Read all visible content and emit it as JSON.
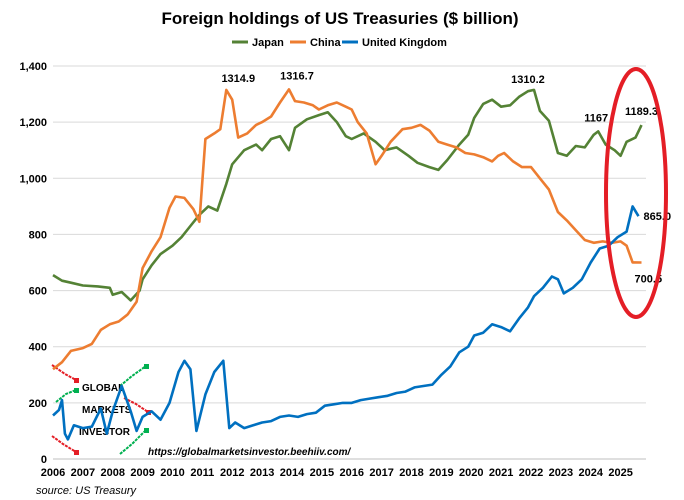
{
  "chart_data": {
    "type": "line",
    "title": "Foreign holdings of US Treasuries ($ billion)",
    "ylim": [
      0,
      1400
    ],
    "yticks": [
      0,
      200,
      400,
      600,
      800,
      1000,
      1200,
      1400
    ],
    "ytick_labels": [
      "0",
      "200",
      "400",
      "600",
      "800",
      "1,000",
      "1,200",
      "1,400"
    ],
    "xlim": [
      2006,
      2025.85
    ],
    "xticks": [
      2006,
      2007,
      2008,
      2009,
      2010,
      2011,
      2012,
      2013,
      2014,
      2015,
      2016,
      2017,
      2018,
      2019,
      2020,
      2021,
      2022,
      2023,
      2024,
      2025
    ],
    "xtick_labels": [
      "2006",
      "2007",
      "2008",
      "2009",
      "2010",
      "2011",
      "2012",
      "2013",
      "2014",
      "2015",
      "2016",
      "2017",
      "2018",
      "2019",
      "2020",
      "2021",
      "2022",
      "2023",
      "2024",
      "2025"
    ],
    "grid": true,
    "legend_position": "top-center",
    "series": [
      {
        "name": "Japan",
        "color": "#548235",
        "points": [
          [
            2006.0,
            655
          ],
          [
            2006.3,
            635
          ],
          [
            2006.6,
            628
          ],
          [
            2007.0,
            618
          ],
          [
            2007.5,
            615
          ],
          [
            2007.9,
            610
          ],
          [
            2008.0,
            585
          ],
          [
            2008.3,
            595
          ],
          [
            2008.6,
            565
          ],
          [
            2008.9,
            600
          ],
          [
            2009.0,
            640
          ],
          [
            2009.3,
            690
          ],
          [
            2009.6,
            730
          ],
          [
            2010.0,
            760
          ],
          [
            2010.3,
            790
          ],
          [
            2010.6,
            830
          ],
          [
            2010.9,
            870
          ],
          [
            2011.2,
            900
          ],
          [
            2011.5,
            885
          ],
          [
            2011.8,
            980
          ],
          [
            2012.0,
            1050
          ],
          [
            2012.4,
            1100
          ],
          [
            2012.8,
            1120
          ],
          [
            2013.0,
            1100
          ],
          [
            2013.3,
            1140
          ],
          [
            2013.6,
            1150
          ],
          [
            2013.9,
            1100
          ],
          [
            2014.1,
            1180
          ],
          [
            2014.5,
            1210
          ],
          [
            2014.9,
            1225
          ],
          [
            2015.2,
            1235
          ],
          [
            2015.5,
            1200
          ],
          [
            2015.8,
            1150
          ],
          [
            2016.0,
            1140
          ],
          [
            2016.4,
            1160
          ],
          [
            2016.8,
            1130
          ],
          [
            2017.1,
            1100
          ],
          [
            2017.5,
            1110
          ],
          [
            2017.9,
            1080
          ],
          [
            2018.2,
            1055
          ],
          [
            2018.6,
            1040
          ],
          [
            2018.9,
            1030
          ],
          [
            2019.2,
            1065
          ],
          [
            2019.6,
            1120
          ],
          [
            2019.9,
            1155
          ],
          [
            2020.1,
            1215
          ],
          [
            2020.4,
            1265
          ],
          [
            2020.7,
            1280
          ],
          [
            2021.0,
            1255
          ],
          [
            2021.3,
            1260
          ],
          [
            2021.6,
            1290
          ],
          [
            2021.9,
            1310.2
          ],
          [
            2022.1,
            1315
          ],
          [
            2022.3,
            1240
          ],
          [
            2022.6,
            1205
          ],
          [
            2022.9,
            1090
          ],
          [
            2023.2,
            1080
          ],
          [
            2023.5,
            1115
          ],
          [
            2023.8,
            1110
          ],
          [
            2024.1,
            1155
          ],
          [
            2024.25,
            1167
          ],
          [
            2024.5,
            1120
          ],
          [
            2024.8,
            1100
          ],
          [
            2025.0,
            1080
          ],
          [
            2025.2,
            1130
          ],
          [
            2025.5,
            1145
          ],
          [
            2025.7,
            1189.3
          ]
        ]
      },
      {
        "name": "China",
        "color": "#ED7D31",
        "points": [
          [
            2006.0,
            320
          ],
          [
            2006.3,
            345
          ],
          [
            2006.6,
            385
          ],
          [
            2007.0,
            395
          ],
          [
            2007.3,
            410
          ],
          [
            2007.6,
            460
          ],
          [
            2007.9,
            480
          ],
          [
            2008.2,
            490
          ],
          [
            2008.5,
            515
          ],
          [
            2008.8,
            560
          ],
          [
            2009.0,
            680
          ],
          [
            2009.3,
            740
          ],
          [
            2009.6,
            790
          ],
          [
            2009.9,
            895
          ],
          [
            2010.1,
            935
          ],
          [
            2010.4,
            930
          ],
          [
            2010.7,
            890
          ],
          [
            2010.9,
            845
          ],
          [
            2011.1,
            1140
          ],
          [
            2011.4,
            1160
          ],
          [
            2011.6,
            1175
          ],
          [
            2011.8,
            1314.9
          ],
          [
            2012.0,
            1280
          ],
          [
            2012.2,
            1145
          ],
          [
            2012.5,
            1160
          ],
          [
            2012.8,
            1190
          ],
          [
            2013.0,
            1200
          ],
          [
            2013.3,
            1220
          ],
          [
            2013.6,
            1270
          ],
          [
            2013.9,
            1316.7
          ],
          [
            2014.1,
            1275
          ],
          [
            2014.4,
            1270
          ],
          [
            2014.7,
            1260
          ],
          [
            2014.9,
            1245
          ],
          [
            2015.2,
            1260
          ],
          [
            2015.5,
            1270
          ],
          [
            2015.8,
            1255
          ],
          [
            2016.0,
            1245
          ],
          [
            2016.2,
            1200
          ],
          [
            2016.5,
            1160
          ],
          [
            2016.8,
            1050
          ],
          [
            2017.0,
            1080
          ],
          [
            2017.3,
            1130
          ],
          [
            2017.7,
            1175
          ],
          [
            2018.0,
            1180
          ],
          [
            2018.3,
            1190
          ],
          [
            2018.6,
            1170
          ],
          [
            2018.9,
            1130
          ],
          [
            2019.2,
            1120
          ],
          [
            2019.5,
            1110
          ],
          [
            2019.8,
            1090
          ],
          [
            2020.1,
            1085
          ],
          [
            2020.4,
            1075
          ],
          [
            2020.7,
            1060
          ],
          [
            2020.9,
            1080
          ],
          [
            2021.1,
            1090
          ],
          [
            2021.4,
            1060
          ],
          [
            2021.7,
            1040
          ],
          [
            2022.0,
            1040
          ],
          [
            2022.3,
            1000
          ],
          [
            2022.6,
            960
          ],
          [
            2022.9,
            880
          ],
          [
            2023.2,
            850
          ],
          [
            2023.5,
            815
          ],
          [
            2023.8,
            780
          ],
          [
            2024.1,
            770
          ],
          [
            2024.4,
            775
          ],
          [
            2024.7,
            770
          ],
          [
            2025.0,
            775
          ],
          [
            2025.2,
            760
          ],
          [
            2025.4,
            700.5
          ],
          [
            2025.7,
            700
          ]
        ]
      },
      {
        "name": "United Kingdom",
        "color": "#0070C0",
        "points": [
          [
            2006.0,
            155
          ],
          [
            2006.2,
            175
          ],
          [
            2006.3,
            210
          ],
          [
            2006.4,
            90
          ],
          [
            2006.5,
            70
          ],
          [
            2006.7,
            120
          ],
          [
            2007.0,
            110
          ],
          [
            2007.3,
            115
          ],
          [
            2007.6,
            180
          ],
          [
            2007.8,
            90
          ],
          [
            2008.0,
            170
          ],
          [
            2008.3,
            260
          ],
          [
            2008.6,
            170
          ],
          [
            2008.8,
            100
          ],
          [
            2009.0,
            150
          ],
          [
            2009.3,
            170
          ],
          [
            2009.6,
            140
          ],
          [
            2009.9,
            200
          ],
          [
            2010.2,
            310
          ],
          [
            2010.4,
            350
          ],
          [
            2010.6,
            320
          ],
          [
            2010.8,
            100
          ],
          [
            2011.1,
            230
          ],
          [
            2011.4,
            310
          ],
          [
            2011.7,
            350
          ],
          [
            2011.9,
            110
          ],
          [
            2012.1,
            130
          ],
          [
            2012.4,
            110
          ],
          [
            2012.7,
            120
          ],
          [
            2013.0,
            130
          ],
          [
            2013.3,
            135
          ],
          [
            2013.6,
            150
          ],
          [
            2013.9,
            155
          ],
          [
            2014.2,
            150
          ],
          [
            2014.5,
            160
          ],
          [
            2014.8,
            165
          ],
          [
            2015.1,
            190
          ],
          [
            2015.4,
            195
          ],
          [
            2015.7,
            200
          ],
          [
            2016.0,
            200
          ],
          [
            2016.3,
            210
          ],
          [
            2016.6,
            215
          ],
          [
            2016.9,
            220
          ],
          [
            2017.2,
            225
          ],
          [
            2017.5,
            235
          ],
          [
            2017.8,
            240
          ],
          [
            2018.1,
            255
          ],
          [
            2018.4,
            260
          ],
          [
            2018.7,
            265
          ],
          [
            2019.0,
            300
          ],
          [
            2019.3,
            330
          ],
          [
            2019.6,
            380
          ],
          [
            2019.9,
            400
          ],
          [
            2020.1,
            440
          ],
          [
            2020.4,
            450
          ],
          [
            2020.7,
            480
          ],
          [
            2021.0,
            470
          ],
          [
            2021.3,
            455
          ],
          [
            2021.6,
            500
          ],
          [
            2021.9,
            540
          ],
          [
            2022.1,
            580
          ],
          [
            2022.4,
            610
          ],
          [
            2022.7,
            650
          ],
          [
            2022.9,
            640
          ],
          [
            2023.1,
            590
          ],
          [
            2023.4,
            610
          ],
          [
            2023.7,
            640
          ],
          [
            2024.0,
            700
          ],
          [
            2024.3,
            750
          ],
          [
            2024.6,
            760
          ],
          [
            2024.9,
            790
          ],
          [
            2025.2,
            810
          ],
          [
            2025.4,
            900
          ],
          [
            2025.6,
            865.0
          ]
        ]
      }
    ],
    "annotations": [
      {
        "text": "1314.9",
        "x": 2011.8,
        "y": 1314.9
      },
      {
        "text": "1316.7",
        "x": 2013.9,
        "y": 1316.7
      },
      {
        "text": "1310.2",
        "x": 2021.9,
        "y": 1310.2
      },
      {
        "text": "1167",
        "x": 2024.25,
        "y": 1167
      },
      {
        "text": "1189.3",
        "x": 2025.7,
        "y": 1189.3
      },
      {
        "text": "865.0",
        "x": 2025.6,
        "y": 865.0
      },
      {
        "text": "700.5",
        "x": 2025.4,
        "y": 700.5
      }
    ],
    "highlight_color": "#E41E26"
  },
  "watermark": {
    "line1": "GLOBAL",
    "line2": "MARKETS",
    "line3": "INVESTOR"
  },
  "url_text": "https://globalmarketsinvestor.beehiiv.com/",
  "source_text": "source: US Treasury"
}
